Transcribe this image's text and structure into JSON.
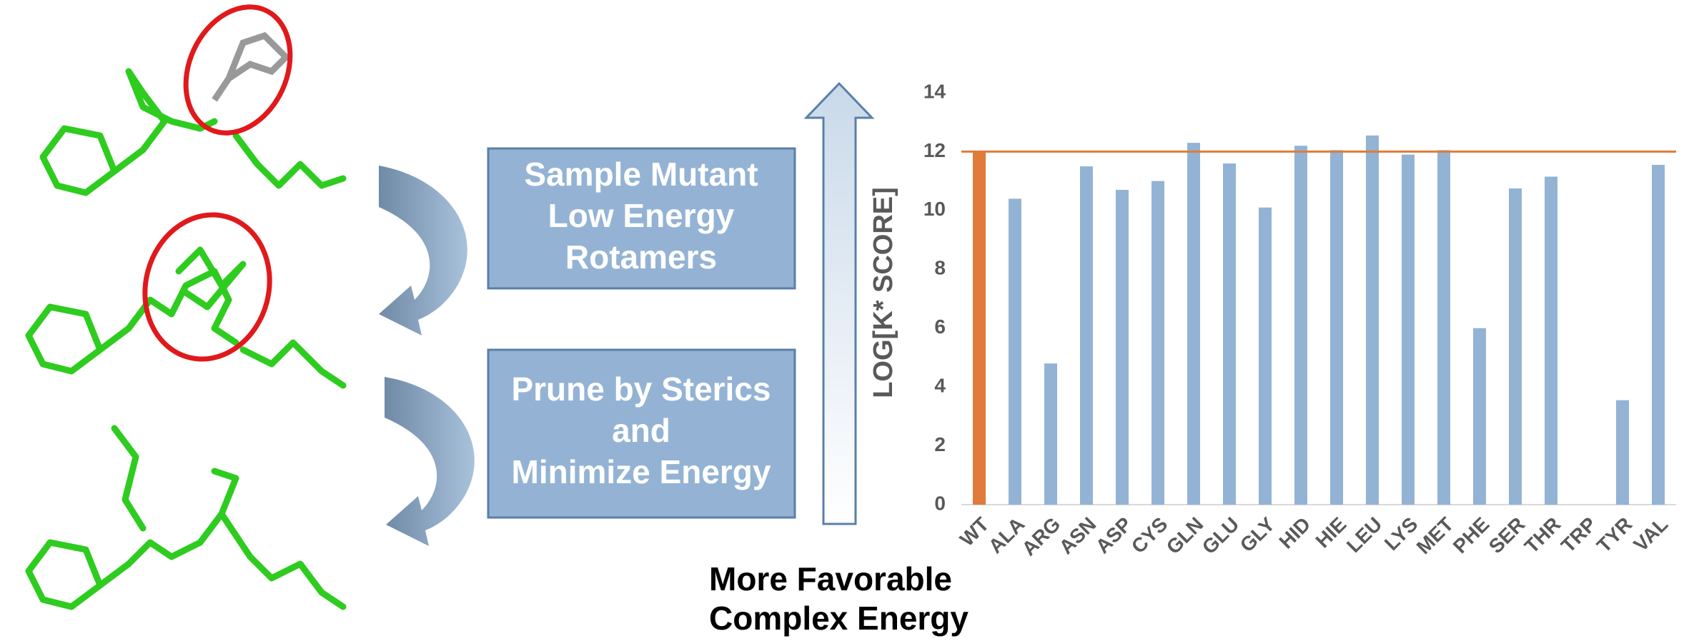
{
  "chart_data": {
    "type": "bar",
    "y_label": "LOG[K* SCORE]",
    "categories": [
      "WT",
      "ALA",
      "ARG",
      "ASN",
      "ASP",
      "CYS",
      "GLN",
      "GLU",
      "GLY",
      "HID",
      "HIE",
      "LEU",
      "LYS",
      "MET",
      "PHE",
      "SER",
      "THR",
      "TRP",
      "TYR",
      "VAL"
    ],
    "values": [
      12,
      10.4,
      4.8,
      11.5,
      10.7,
      11,
      12.3,
      11.6,
      10.1,
      12.2,
      12.05,
      12.55,
      11.9,
      12.05,
      6,
      10.75,
      11.15,
      null,
      3.55,
      11.55
    ],
    "colors": [
      "#e07b39",
      "#93b3d5",
      "#93b3d5",
      "#93b3d5",
      "#93b3d5",
      "#93b3d5",
      "#93b3d5",
      "#93b3d5",
      "#93b3d5",
      "#93b3d5",
      "#93b3d5",
      "#93b3d5",
      "#93b3d5",
      "#93b3d5",
      "#93b3d5",
      "#93b3d5",
      "#93b3d5",
      "#93b3d5",
      "#93b3d5",
      "#93b3d5"
    ],
    "reference_line": {
      "value": 12,
      "color": "#e07b39"
    },
    "ylim": [
      0,
      14
    ],
    "yticks": [
      0,
      2,
      4,
      6,
      8,
      10,
      12,
      14
    ],
    "grid": false
  },
  "boxes": [
    {
      "lines": [
        "Sample Mutant",
        "Low Energy",
        "Rotamers"
      ]
    },
    {
      "lines": [
        "Prune by Sterics",
        "and",
        "Minimize Energy"
      ]
    }
  ],
  "caption": [
    "More Favorable",
    "Complex Energy"
  ]
}
